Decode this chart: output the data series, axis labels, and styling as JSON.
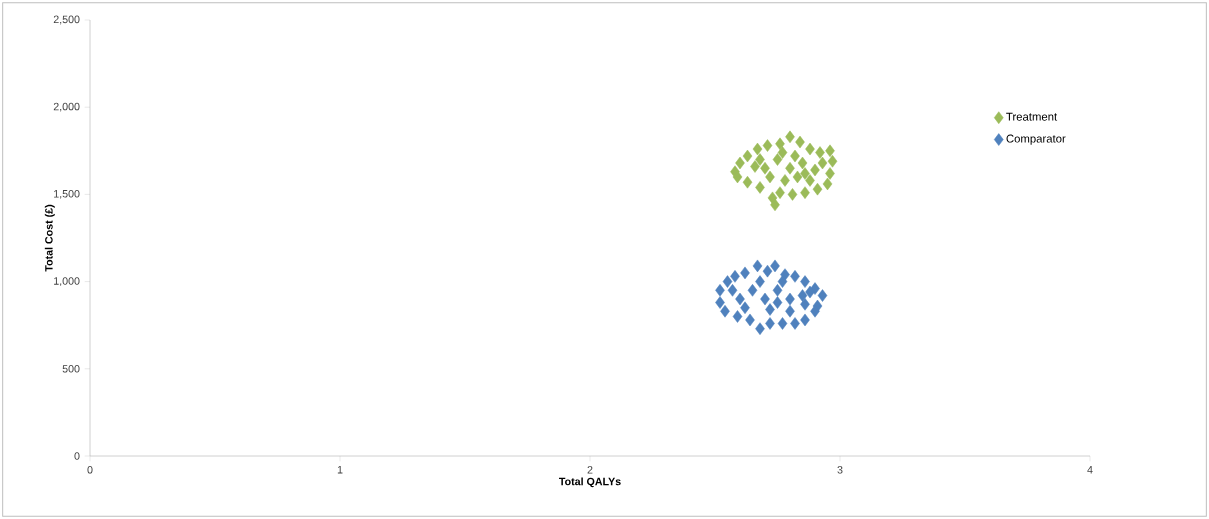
{
  "chart_data": {
    "type": "scatter",
    "xlabel": "Total QALYs",
    "ylabel": "Total Cost (£)",
    "xlim": [
      0,
      4
    ],
    "ylim": [
      0,
      2500
    ],
    "xticks": [
      0,
      1,
      2,
      3,
      4
    ],
    "yticks": [
      0,
      500,
      {
        "value": 1000,
        "label": "1,000"
      },
      {
        "value": 1500,
        "label": "1,500"
      },
      {
        "value": 2000,
        "label": "2,000"
      },
      {
        "value": 2500,
        "label": "2,500"
      }
    ],
    "grid": false,
    "legend": "top right",
    "marker": "diamond",
    "series": [
      {
        "name": "Treatment",
        "color": "#9bbb59",
        "x": [
          2.58,
          2.6,
          2.63,
          2.67,
          2.71,
          2.76,
          2.8,
          2.84,
          2.88,
          2.92,
          2.96,
          2.97,
          2.96,
          2.95,
          2.91,
          2.86,
          2.81,
          2.76,
          2.73,
          2.74,
          2.68,
          2.63,
          2.59,
          2.7,
          2.75,
          2.8,
          2.85,
          2.9,
          2.78,
          2.83,
          2.72,
          2.66,
          2.88,
          2.93,
          2.77,
          2.82,
          2.68,
          2.86
        ],
        "values": [
          1630,
          1680,
          1720,
          1760,
          1780,
          1790,
          1830,
          1800,
          1760,
          1740,
          1750,
          1690,
          1620,
          1560,
          1530,
          1510,
          1500,
          1510,
          1480,
          1440,
          1540,
          1570,
          1600,
          1650,
          1700,
          1650,
          1680,
          1640,
          1580,
          1600,
          1600,
          1660,
          1580,
          1680,
          1740,
          1720,
          1700,
          1620
        ]
      },
      {
        "name": "Comparator",
        "color": "#4f81bd",
        "x": [
          2.52,
          2.55,
          2.58,
          2.62,
          2.67,
          2.71,
          2.74,
          2.78,
          2.82,
          2.86,
          2.9,
          2.93,
          2.91,
          2.9,
          2.86,
          2.82,
          2.77,
          2.72,
          2.68,
          2.64,
          2.59,
          2.54,
          2.52,
          2.6,
          2.65,
          2.7,
          2.75,
          2.8,
          2.85,
          2.62,
          2.72,
          2.8,
          2.68,
          2.77,
          2.86,
          2.57,
          2.88,
          2.75
        ],
        "values": [
          950,
          1000,
          1030,
          1050,
          1090,
          1060,
          1090,
          1040,
          1030,
          1000,
          960,
          920,
          860,
          830,
          780,
          760,
          760,
          760,
          730,
          780,
          800,
          830,
          880,
          900,
          950,
          900,
          950,
          900,
          920,
          850,
          840,
          830,
          1000,
          1000,
          870,
          950,
          940,
          880
        ]
      }
    ]
  }
}
